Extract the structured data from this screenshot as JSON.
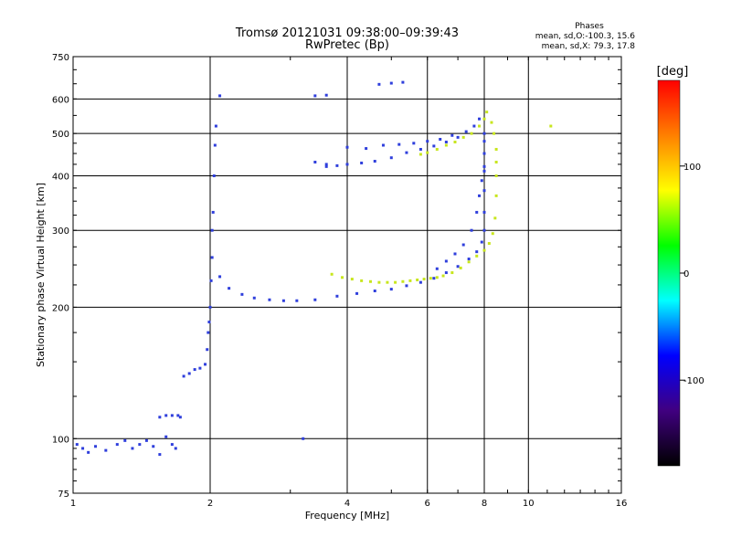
{
  "chart_data": {
    "type": "scatter",
    "title": "Tromsø 20121031 09:38:00–09:39:43",
    "subtitle": "RwPretec (Bp)",
    "xlabel": "Frequency [MHz]",
    "ylabel": "Stationary phase Virtual Height [km]",
    "xscale": "log",
    "yscale": "log",
    "xlim": [
      1,
      16
    ],
    "ylim": [
      75,
      750
    ],
    "x_ticks": [
      1,
      2,
      4,
      6,
      8,
      10,
      16
    ],
    "x_tick_labels": [
      "1",
      "2",
      "4",
      "6",
      "8",
      "10",
      "16"
    ],
    "y_ticks": [
      75,
      100,
      200,
      300,
      400,
      500,
      600,
      750
    ],
    "y_tick_labels": [
      "75",
      "100",
      "200",
      "300",
      "400",
      "500",
      "600",
      "750"
    ],
    "grid": true,
    "legend": {
      "title": "Phases",
      "line1": "mean, sd,O:-100.3, 15.6",
      "line2": "mean, sd,X:  79.3, 17.8",
      "placement": "top-right"
    },
    "colorbar": {
      "label": "[deg]",
      "ticks": [
        100,
        0,
        -100
      ],
      "tick_labels": [
        "100",
        "0",
        "-100"
      ],
      "range": [
        -180,
        180
      ],
      "colors": [
        "#ff0000",
        "#ff8000",
        "#ffff00",
        "#00ff00",
        "#00ffff",
        "#0000ff",
        "#400080",
        "#000000"
      ]
    },
    "series": [
      {
        "mode": "O",
        "color": "#2f3fdc",
        "points": [
          [
            1.02,
            97
          ],
          [
            1.05,
            95
          ],
          [
            1.08,
            93
          ],
          [
            1.12,
            96
          ],
          [
            1.18,
            94
          ],
          [
            1.25,
            97
          ],
          [
            1.3,
            99
          ],
          [
            1.35,
            95
          ],
          [
            1.4,
            97
          ],
          [
            1.45,
            99
          ],
          [
            1.5,
            96
          ],
          [
            1.55,
            92
          ],
          [
            1.6,
            101
          ],
          [
            1.65,
            97
          ],
          [
            1.68,
            95
          ],
          [
            1.72,
            112
          ],
          [
            1.7,
            113
          ],
          [
            1.65,
            113
          ],
          [
            1.6,
            113
          ],
          [
            1.55,
            112
          ],
          [
            1.75,
            139
          ],
          [
            1.8,
            141
          ],
          [
            1.85,
            144
          ],
          [
            1.9,
            145
          ],
          [
            1.95,
            148
          ],
          [
            1.97,
            160
          ],
          [
            1.98,
            175
          ],
          [
            1.99,
            185
          ],
          [
            2.0,
            200
          ],
          [
            2.01,
            230
          ],
          [
            2.02,
            260
          ],
          [
            2.02,
            300
          ],
          [
            2.03,
            330
          ],
          [
            2.04,
            400
          ],
          [
            2.05,
            470
          ],
          [
            2.06,
            520
          ],
          [
            2.1,
            235
          ],
          [
            2.2,
            221
          ],
          [
            2.35,
            214
          ],
          [
            2.5,
            210
          ],
          [
            2.7,
            208
          ],
          [
            2.9,
            207
          ],
          [
            3.1,
            207
          ],
          [
            3.4,
            208
          ],
          [
            3.8,
            212
          ],
          [
            4.2,
            215
          ],
          [
            4.6,
            218
          ],
          [
            5.0,
            220
          ],
          [
            5.4,
            224
          ],
          [
            5.8,
            228
          ],
          [
            6.2,
            233
          ],
          [
            6.6,
            240
          ],
          [
            7.0,
            248
          ],
          [
            7.4,
            258
          ],
          [
            7.7,
            268
          ],
          [
            7.9,
            282
          ],
          [
            8.0,
            300
          ],
          [
            8.0,
            330
          ],
          [
            8.0,
            370
          ],
          [
            8.0,
            410
          ],
          [
            8.0,
            450
          ],
          [
            8.0,
            480
          ],
          [
            8.0,
            500
          ],
          [
            6.3,
            245
          ],
          [
            6.6,
            255
          ],
          [
            6.9,
            265
          ],
          [
            7.2,
            278
          ],
          [
            7.5,
            300
          ],
          [
            7.7,
            330
          ],
          [
            7.8,
            360
          ],
          [
            7.9,
            390
          ],
          [
            8.0,
            420
          ],
          [
            3.6,
            420
          ],
          [
            3.8,
            422
          ],
          [
            4.0,
            425
          ],
          [
            4.3,
            428
          ],
          [
            4.6,
            432
          ],
          [
            5.0,
            440
          ],
          [
            5.4,
            452
          ],
          [
            5.8,
            460
          ],
          [
            6.2,
            468
          ],
          [
            6.6,
            478
          ],
          [
            7.0,
            490
          ],
          [
            7.3,
            505
          ],
          [
            7.6,
            520
          ],
          [
            7.8,
            540
          ],
          [
            3.4,
            430
          ],
          [
            3.6,
            425
          ],
          [
            4.0,
            465
          ],
          [
            4.4,
            462
          ],
          [
            4.8,
            470
          ],
          [
            5.2,
            472
          ],
          [
            5.6,
            475
          ],
          [
            6.0,
            480
          ],
          [
            6.4,
            485
          ],
          [
            6.8,
            495
          ],
          [
            3.4,
            610
          ],
          [
            3.6,
            612
          ],
          [
            4.7,
            648
          ],
          [
            5.0,
            652
          ],
          [
            5.3,
            655
          ],
          [
            2.1,
            610
          ],
          [
            3.2,
            100
          ]
        ]
      },
      {
        "mode": "X",
        "color": "#c8e61e",
        "points": [
          [
            3.7,
            238
          ],
          [
            3.9,
            234
          ],
          [
            4.1,
            232
          ],
          [
            4.3,
            230
          ],
          [
            4.5,
            229
          ],
          [
            4.7,
            228
          ],
          [
            4.9,
            228
          ],
          [
            5.1,
            228
          ],
          [
            5.3,
            229
          ],
          [
            5.5,
            230
          ],
          [
            5.7,
            231
          ],
          [
            5.9,
            232
          ],
          [
            6.1,
            233
          ],
          [
            6.3,
            234
          ],
          [
            6.5,
            236
          ],
          [
            6.8,
            240
          ],
          [
            7.1,
            246
          ],
          [
            7.4,
            254
          ],
          [
            7.7,
            262
          ],
          [
            8.0,
            270
          ],
          [
            8.2,
            280
          ],
          [
            8.35,
            295
          ],
          [
            8.45,
            320
          ],
          [
            8.5,
            360
          ],
          [
            8.5,
            400
          ],
          [
            8.5,
            430
          ],
          [
            8.5,
            460
          ],
          [
            8.4,
            500
          ],
          [
            8.3,
            530
          ],
          [
            5.8,
            448
          ],
          [
            6.0,
            452
          ],
          [
            6.3,
            460
          ],
          [
            6.6,
            470
          ],
          [
            6.9,
            478
          ],
          [
            7.2,
            490
          ],
          [
            7.5,
            500
          ],
          [
            7.8,
            520
          ],
          [
            8.0,
            540
          ],
          [
            8.1,
            560
          ],
          [
            11.2,
            520
          ]
        ]
      }
    ]
  }
}
